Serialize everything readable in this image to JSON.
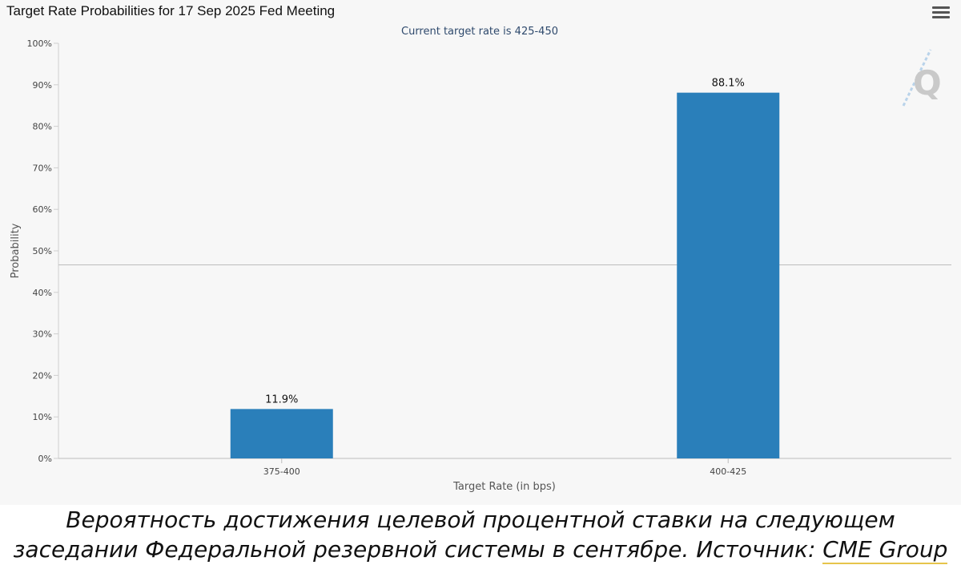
{
  "chart_data": {
    "type": "bar",
    "title": "Target Rate Probabilities for 17 Sep 2025 Fed Meeting",
    "subtitle": "Current target rate is 425-450",
    "xlabel": "Target Rate (in bps)",
    "ylabel": "Probability",
    "categories": [
      "375-400",
      "400-425"
    ],
    "values": [
      11.9,
      88.1
    ],
    "data_labels": [
      "11.9%",
      "88.1%"
    ],
    "ylim": [
      0,
      100
    ],
    "yticks": [
      "0%",
      "10%",
      "20%",
      "30%",
      "40%",
      "50%",
      "60%",
      "70%",
      "80%",
      "90%",
      "100%"
    ],
    "bar_color": "#2a7fba",
    "grid": false,
    "legend": "none"
  },
  "toolbar": {
    "menu_icon": "hamburger-menu-icon"
  },
  "watermark": {
    "icon": "quikstrike-q-logo"
  },
  "caption": {
    "text": "Вероятность достижения целевой процентной ставки на следующем заседании Федеральной резервной системы в сентябре. Источник: ",
    "link": "CME Group"
  }
}
